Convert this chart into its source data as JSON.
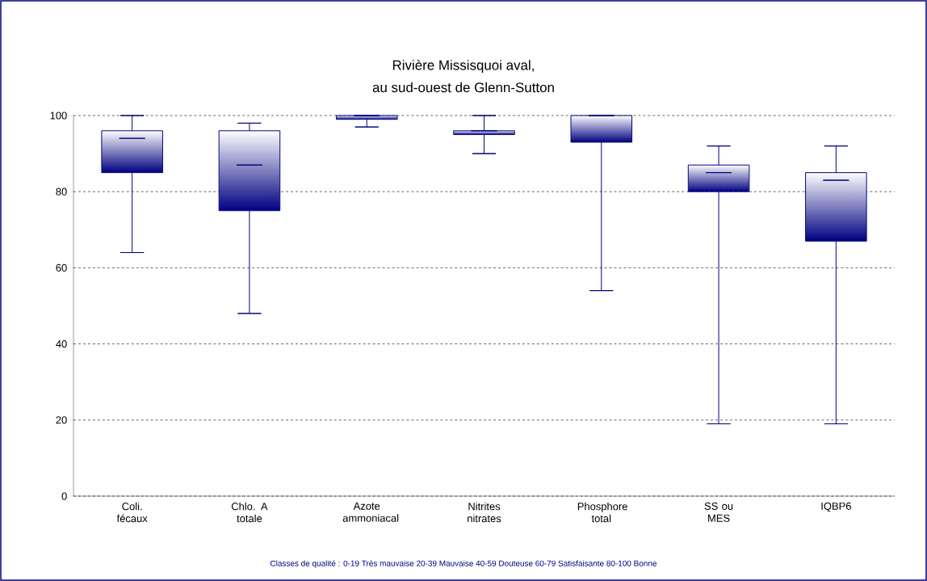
{
  "chart_data": {
    "type": "box",
    "title": "Rivière Missisquoi aval,",
    "subtitle": "au sud-ouest de Glenn-Sutton",
    "categories": [
      "Coli. fécaux",
      "Chlo. A totale",
      "Azote ammoniacal",
      "Nitrites nitrates",
      "Phosphore total",
      "SS ou MES",
      "IQBP6"
    ],
    "boxes": [
      {
        "low": 64,
        "q1": 85,
        "median": 94,
        "q3": 96,
        "high": 100
      },
      {
        "low": 48,
        "q1": 75,
        "median": 87,
        "q3": 96,
        "high": 98
      },
      {
        "low": 97,
        "q1": 99,
        "median": 100,
        "q3": 100,
        "high": 100
      },
      {
        "low": 90,
        "q1": 95,
        "median": 96,
        "q3": 96,
        "high": 100
      },
      {
        "low": 54,
        "q1": 93,
        "median": 100,
        "q3": 100,
        "high": 100
      },
      {
        "low": 19,
        "q1": 80,
        "median": 85,
        "q3": 87,
        "high": 92
      },
      {
        "low": 19,
        "q1": 67,
        "median": 83,
        "q3": 85,
        "high": 92
      }
    ],
    "color": "#000080",
    "ylim": [
      0,
      100
    ],
    "yticks": [
      0,
      20,
      40,
      60,
      80,
      100
    ],
    "grid": "y",
    "annotations": [
      "Classes de qualité :  0-19 Très mauvaise    20-39 Mauvaise    40-59 Douteuse    60-79 Satisfaisante    80-100 Bonne"
    ]
  }
}
